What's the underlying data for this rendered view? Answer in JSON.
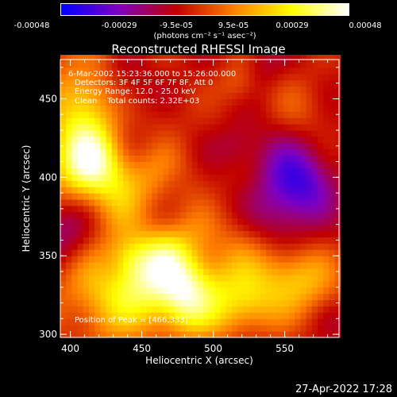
{
  "colorbar": {
    "ticks": [
      "-0.00048",
      "-0.00029",
      "-9.5e-05",
      "9.5e-05",
      "0.00029",
      "0.00048"
    ],
    "units": "(photons cm⁻² s⁻¹ asec⁻²)"
  },
  "chart_data": {
    "type": "heatmap",
    "title": "Reconstructed RHESSI Image",
    "xlabel": "Heliocentric X (arcsec)",
    "ylabel": "Heliocentric Y (arcsec)",
    "xlim": [
      393,
      588
    ],
    "ylim": [
      298,
      475
    ],
    "xticks": [
      "400",
      "450",
      "500",
      "550"
    ],
    "yticks": [
      "300",
      "350",
      "400",
      "450"
    ],
    "colorscale": [
      "#0000ff",
      "#8000c0",
      "#c00000",
      "#ff8000",
      "#ffff00",
      "#ffffff"
    ],
    "value_range": [
      -0.00048,
      0.00048
    ],
    "peak_position": [
      466,
      333
    ],
    "annotations": {
      "time_range": "6-Mar-2002 15:23:36.000 to 15:26:00.000",
      "detectors": "Detectors: 3F 4F 5F 6F 7F 8F, Att 0",
      "energy": "Energy Range: 12.0 - 25.0 keV",
      "clean": "Clean    Total counts: 2.32E+03",
      "peak_label": "Position of Peak = [466,333]"
    }
  },
  "footer": {
    "date": "27-Apr-2022 17:28"
  }
}
